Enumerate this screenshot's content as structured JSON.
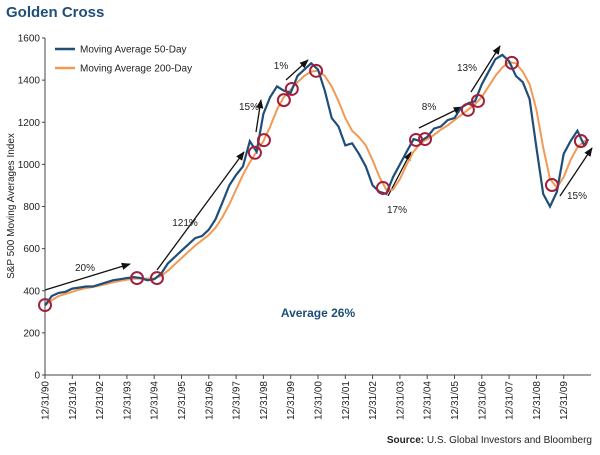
{
  "chart_data": {
    "type": "line",
    "title": "Golden Cross",
    "ylabel": "S&P 500 Moving Averages Index",
    "ylim": [
      0,
      1600
    ],
    "yticks": [
      0,
      200,
      400,
      600,
      800,
      1000,
      1200,
      1400,
      1600
    ],
    "xlim": [
      1991,
      2011
    ],
    "xticks": [
      {
        "value": 1991,
        "label": "12/31/90"
      },
      {
        "value": 1992,
        "label": "12/31/91"
      },
      {
        "value": 1993,
        "label": "12/31/92"
      },
      {
        "value": 1994,
        "label": "12/31/93"
      },
      {
        "value": 1995,
        "label": "12/31/94"
      },
      {
        "value": 1996,
        "label": "12/31/95"
      },
      {
        "value": 1997,
        "label": "12/31/96"
      },
      {
        "value": 1998,
        "label": "12/31/97"
      },
      {
        "value": 1999,
        "label": "12/31/98"
      },
      {
        "value": 2000,
        "label": "12/31/99"
      },
      {
        "value": 2001,
        "label": "12/31/00"
      },
      {
        "value": 2002,
        "label": "12/31/01"
      },
      {
        "value": 2003,
        "label": "12/31/02"
      },
      {
        "value": 2004,
        "label": "12/31/03"
      },
      {
        "value": 2005,
        "label": "12/31/04"
      },
      {
        "value": 2006,
        "label": "12/31/05"
      },
      {
        "value": 2007,
        "label": "12/31/06"
      },
      {
        "value": 2008,
        "label": "12/31/07"
      },
      {
        "value": 2009,
        "label": "12/31/08"
      },
      {
        "value": 2010,
        "label": "12/31/09"
      }
    ],
    "grid": false,
    "legend": "upper left",
    "x": [
      1991,
      1991.25,
      1991.5,
      1991.75,
      1992,
      1992.25,
      1992.5,
      1992.75,
      1993,
      1993.25,
      1993.5,
      1993.75,
      1994,
      1994.25,
      1994.5,
      1994.75,
      1995,
      1995.25,
      1995.5,
      1995.75,
      1996,
      1996.25,
      1996.5,
      1996.75,
      1997,
      1997.25,
      1997.5,
      1997.75,
      1998,
      1998.25,
      1998.5,
      1998.75,
      1999,
      1999.25,
      1999.5,
      1999.75,
      2000,
      2000.25,
      2000.5,
      2000.75,
      2001,
      2001.25,
      2001.5,
      2001.75,
      2002,
      2002.25,
      2002.5,
      2002.75,
      2003,
      2003.25,
      2003.5,
      2003.75,
      2004,
      2004.25,
      2004.5,
      2004.75,
      2005,
      2005.25,
      2005.5,
      2005.75,
      2006,
      2006.25,
      2006.5,
      2006.75,
      2007,
      2007.25,
      2007.5,
      2007.75,
      2008,
      2008.25,
      2008.5,
      2008.75,
      2009,
      2009.25,
      2009.5,
      2009.75,
      2010,
      2010.25,
      2010.5,
      2010.75,
      2010.9
    ],
    "series": [
      {
        "name": "Moving Average 50-Day",
        "color": "#1f4e79",
        "values": [
          330,
          375,
          390,
          395,
          410,
          415,
          420,
          420,
          430,
          440,
          450,
          455,
          460,
          465,
          460,
          450,
          455,
          480,
          530,
          560,
          590,
          620,
          650,
          660,
          690,
          740,
          820,
          900,
          950,
          990,
          1110,
          1060,
          1240,
          1320,
          1370,
          1350,
          1340,
          1420,
          1450,
          1480,
          1450,
          1350,
          1220,
          1180,
          1090,
          1100,
          1050,
          990,
          900,
          870,
          860,
          940,
          1000,
          1060,
          1120,
          1110,
          1130,
          1170,
          1180,
          1210,
          1220,
          1270,
          1290,
          1300,
          1380,
          1440,
          1500,
          1520,
          1490,
          1420,
          1390,
          1310,
          1080,
          860,
          800,
          870,
          1050,
          1110,
          1160,
          1090,
          1120
        ]
      },
      {
        "name": "Moving Average 200-Day",
        "color": "#f29a55",
        "values": [
          330,
          355,
          375,
          385,
          395,
          405,
          412,
          418,
          425,
          432,
          440,
          447,
          453,
          457,
          458,
          458,
          458,
          470,
          495,
          525,
          555,
          585,
          615,
          640,
          665,
          700,
          750,
          810,
          880,
          950,
          1010,
          1060,
          1110,
          1180,
          1260,
          1320,
          1355,
          1390,
          1420,
          1440,
          1445,
          1420,
          1370,
          1300,
          1220,
          1160,
          1130,
          1090,
          1020,
          940,
          880,
          880,
          930,
          1000,
          1060,
          1100,
          1120,
          1140,
          1165,
          1185,
          1210,
          1235,
          1260,
          1285,
          1320,
          1370,
          1420,
          1460,
          1485,
          1480,
          1440,
          1380,
          1260,
          1080,
          930,
          890,
          940,
          1020,
          1080,
          1110,
          1115
        ]
      }
    ],
    "crossovers": {
      "color": "#a3203c",
      "x": [
        1991,
        1994.37,
        1995.1,
        1998.69,
        1999.02,
        1999.75,
        2000.04,
        2000.93,
        2003.38,
        2004.59,
        2004.92,
        2006.49,
        2006.86,
        2008.1,
        2009.57,
        2010.63
      ],
      "y": [
        332,
        460,
        460,
        1055,
        1115,
        1305,
        1358,
        1444,
        888,
        1116,
        1120,
        1259,
        1301,
        1482,
        902,
        1111
      ]
    },
    "annotations": [
      "20%",
      "121%",
      "15%",
      "1%",
      "17%",
      "8%",
      "13%",
      "15%"
    ],
    "average_label": "Average 26%",
    "source_label": "Source:",
    "source": "U.S. Global Investors and Bloomberg"
  }
}
